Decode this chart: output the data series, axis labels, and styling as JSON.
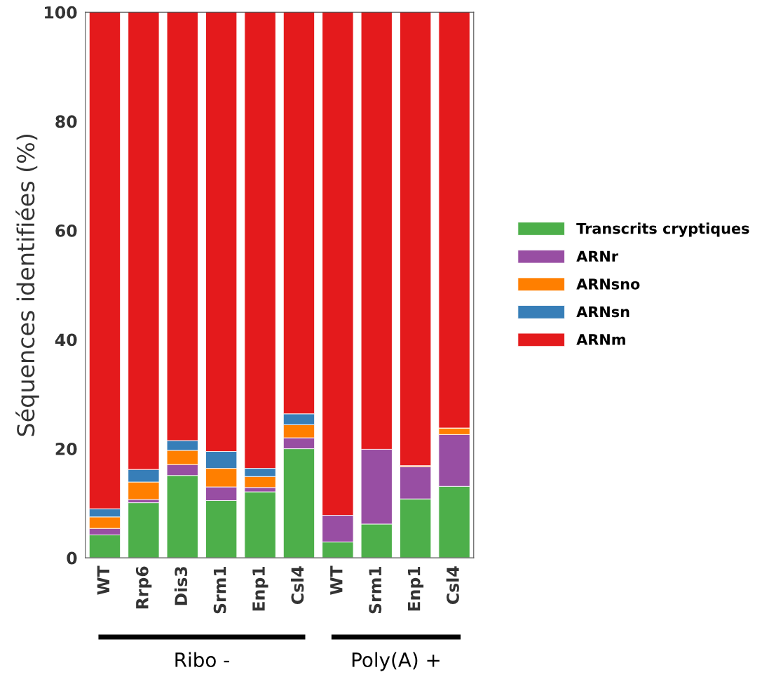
{
  "chart_data": {
    "type": "bar",
    "stacked": true,
    "ylabel": "Séquences identifiées (%)",
    "categories": [
      "WT",
      "Rrp6",
      "Dis3",
      "Srm1",
      "Enp1",
      "Csl4",
      "WT",
      "Srm1",
      "Enp1",
      "Csl4"
    ],
    "series": [
      {
        "name": "Transcrits cryptiques",
        "color": "#4daf4a",
        "values": [
          4.2,
          10.1,
          15.1,
          10.5,
          12.1,
          20.0,
          2.9,
          6.2,
          10.8,
          13.1
        ]
      },
      {
        "name": "ARNr",
        "color": "#984ea3",
        "values": [
          1.2,
          0.6,
          2.0,
          2.5,
          0.8,
          2.0,
          4.9,
          13.7,
          5.9,
          9.5
        ]
      },
      {
        "name": "ARNsno",
        "color": "#ff7f00",
        "values": [
          2.1,
          3.2,
          2.6,
          3.4,
          2.0,
          2.4,
          0,
          0,
          0.2,
          1.2
        ]
      },
      {
        "name": "ARNsn",
        "color": "#377eb8",
        "values": [
          1.5,
          2.3,
          1.8,
          3.1,
          1.5,
          2.0,
          0,
          0,
          0,
          0
        ]
      },
      {
        "name": "ARNm",
        "color": "#e41a1c",
        "values": [
          91.0,
          83.8,
          78.5,
          80.5,
          83.6,
          73.6,
          92.2,
          80.1,
          83.1,
          76.2
        ]
      }
    ],
    "ylim": [
      0,
      100
    ],
    "yticks": [
      0,
      20,
      40,
      60,
      80,
      100
    ],
    "grid": false,
    "legend": "right",
    "annotations": [
      "Ribo -",
      "Poly(A) +"
    ]
  }
}
